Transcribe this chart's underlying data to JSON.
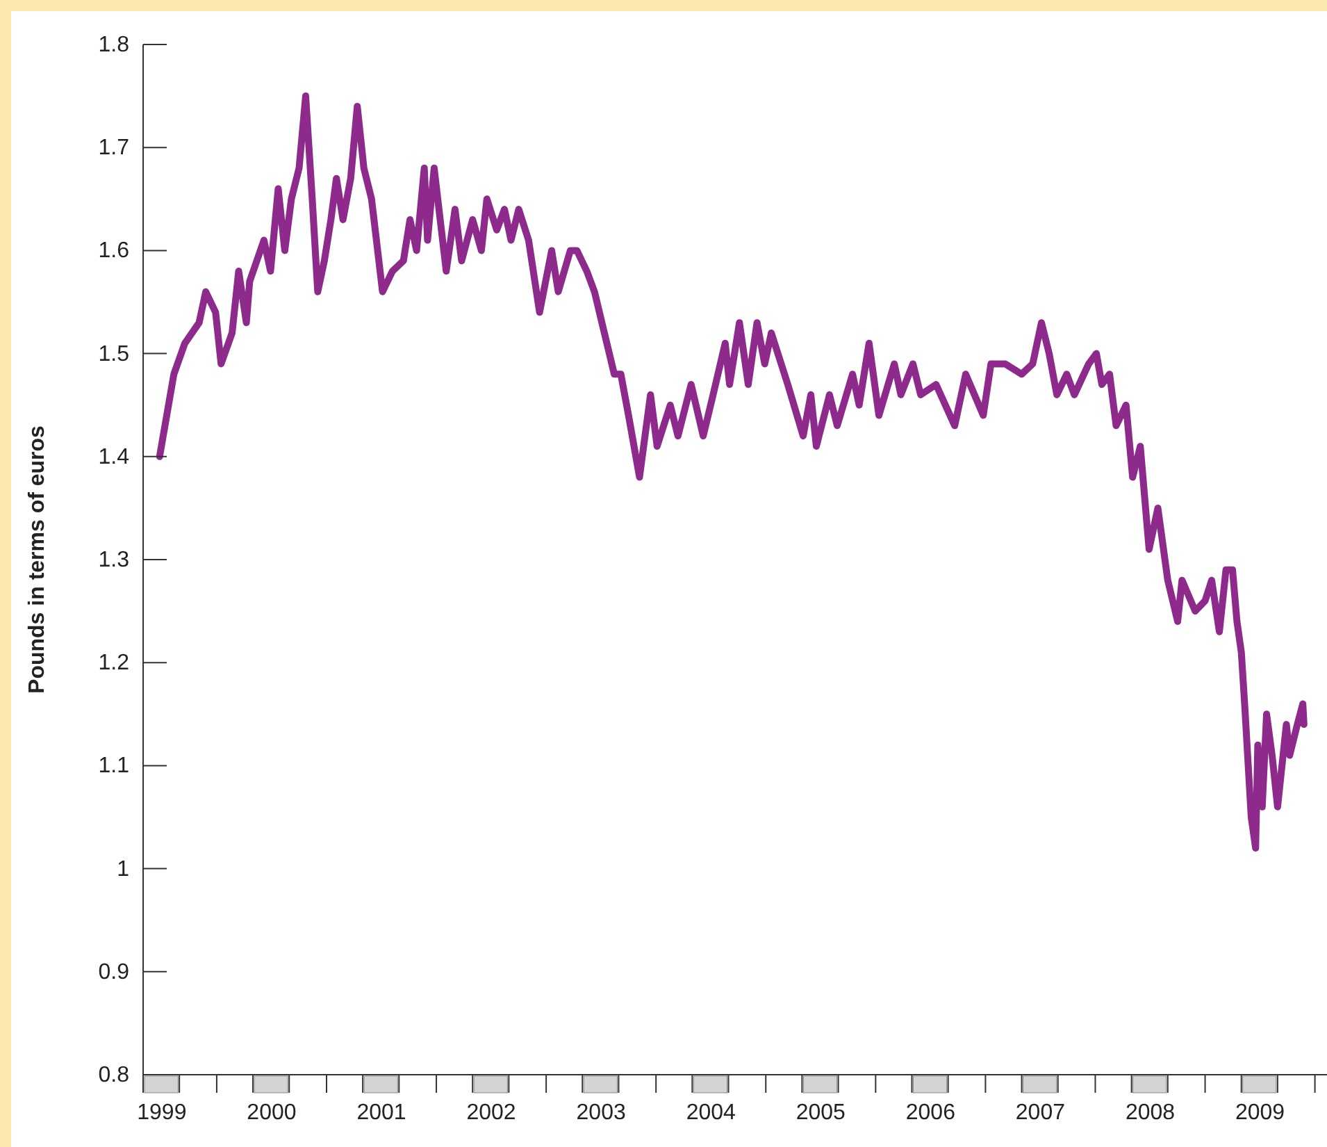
{
  "chart_data": {
    "type": "line",
    "ylabel": "Pounds in terms of euros",
    "color": "#8e2a8c",
    "x": [
      1999.15,
      1999.28,
      1999.38,
      1999.51,
      1999.57,
      1999.66,
      1999.71,
      1999.81,
      1999.87,
      1999.94,
      1999.97,
      2000.1,
      2000.16,
      2000.23,
      2000.29,
      2000.35,
      2000.42,
      2000.48,
      2000.54,
      2000.59,
      2000.65,
      2000.71,
      2000.76,
      2000.82,
      2000.89,
      2000.95,
      2001.01,
      2001.08,
      2001.18,
      2001.27,
      2001.37,
      2001.43,
      2001.49,
      2001.56,
      2001.59,
      2001.65,
      2001.76,
      2001.84,
      2001.9,
      2002.0,
      2002.08,
      2002.13,
      2002.22,
      2002.29,
      2002.35,
      2002.42,
      2002.51,
      2002.61,
      2002.72,
      2002.78,
      2002.89,
      2002.95,
      2003.04,
      2003.11,
      2003.2,
      2003.29,
      2003.35,
      2003.42,
      2003.52,
      2003.62,
      2003.68,
      2003.8,
      2003.87,
      2003.99,
      2004.1,
      2004.19,
      2004.3,
      2004.34,
      2004.43,
      2004.51,
      2004.59,
      2004.66,
      2004.72,
      2004.87,
      2005.01,
      2005.08,
      2005.13,
      2005.25,
      2005.32,
      2005.46,
      2005.52,
      2005.61,
      2005.7,
      2005.84,
      2005.9,
      2006.01,
      2006.08,
      2006.22,
      2006.39,
      2006.49,
      2006.65,
      2006.72,
      2006.85,
      2007.0,
      2007.1,
      2007.18,
      2007.25,
      2007.32,
      2007.41,
      2007.48,
      2007.61,
      2007.68,
      2007.73,
      2007.8,
      2007.86,
      2007.95,
      2008.01,
      2008.08,
      2008.16,
      2008.24,
      2008.33,
      2008.42,
      2008.46,
      2008.58,
      2008.67,
      2008.73,
      2008.8,
      2008.86,
      2008.92,
      2008.96,
      2009.0,
      2009.03,
      2009.09,
      2009.13,
      2009.15,
      2009.19,
      2009.23,
      2009.28,
      2009.33,
      2009.41,
      2009.44,
      2009.51,
      2009.56,
      2009.57
    ],
    "values": [
      1.4,
      1.48,
      1.51,
      1.53,
      1.56,
      1.54,
      1.49,
      1.52,
      1.58,
      1.53,
      1.57,
      1.61,
      1.58,
      1.66,
      1.6,
      1.65,
      1.68,
      1.75,
      1.65,
      1.56,
      1.59,
      1.63,
      1.67,
      1.63,
      1.67,
      1.74,
      1.68,
      1.65,
      1.56,
      1.58,
      1.59,
      1.63,
      1.6,
      1.68,
      1.61,
      1.68,
      1.58,
      1.64,
      1.59,
      1.63,
      1.6,
      1.65,
      1.62,
      1.64,
      1.61,
      1.64,
      1.61,
      1.54,
      1.6,
      1.56,
      1.6,
      1.6,
      1.58,
      1.56,
      1.52,
      1.48,
      1.48,
      1.44,
      1.38,
      1.46,
      1.41,
      1.45,
      1.42,
      1.47,
      1.42,
      1.46,
      1.51,
      1.47,
      1.53,
      1.47,
      1.53,
      1.49,
      1.52,
      1.47,
      1.42,
      1.46,
      1.41,
      1.46,
      1.43,
      1.48,
      1.45,
      1.51,
      1.44,
      1.49,
      1.46,
      1.49,
      1.46,
      1.47,
      1.43,
      1.48,
      1.44,
      1.49,
      1.49,
      1.48,
      1.49,
      1.53,
      1.5,
      1.46,
      1.48,
      1.46,
      1.49,
      1.5,
      1.47,
      1.48,
      1.43,
      1.45,
      1.38,
      1.41,
      1.31,
      1.35,
      1.28,
      1.24,
      1.28,
      1.25,
      1.26,
      1.28,
      1.23,
      1.29,
      1.29,
      1.24,
      1.21,
      1.16,
      1.05,
      1.02,
      1.12,
      1.06,
      1.15,
      1.11,
      1.06,
      1.14,
      1.11,
      1.14,
      1.16,
      1.14
    ],
    "xlim": [
      1999,
      2009.78
    ],
    "xticks": [
      {
        "value": 1999,
        "label": null
      },
      {
        "value": 1999.17,
        "label": "1999"
      },
      {
        "value": 1999.33,
        "label": null
      },
      {
        "value": 1999.67,
        "label": null
      },
      {
        "value": 2000,
        "label": null
      },
      {
        "value": 2000.17,
        "label": "2000"
      },
      {
        "value": 2000.33,
        "label": null
      },
      {
        "value": 2000.67,
        "label": null
      },
      {
        "value": 2001,
        "label": null
      },
      {
        "value": 2001.17,
        "label": "2001"
      },
      {
        "value": 2001.33,
        "label": null
      },
      {
        "value": 2001.67,
        "label": null
      },
      {
        "value": 2002,
        "label": null
      },
      {
        "value": 2002.17,
        "label": "2002"
      },
      {
        "value": 2002.33,
        "label": null
      },
      {
        "value": 2002.67,
        "label": null
      },
      {
        "value": 2003,
        "label": null
      },
      {
        "value": 2003.17,
        "label": "2003"
      },
      {
        "value": 2003.33,
        "label": null
      },
      {
        "value": 2003.67,
        "label": null
      },
      {
        "value": 2004,
        "label": null
      },
      {
        "value": 2004.17,
        "label": "2004"
      },
      {
        "value": 2004.33,
        "label": null
      },
      {
        "value": 2004.67,
        "label": null
      },
      {
        "value": 2005,
        "label": null
      },
      {
        "value": 2005.17,
        "label": "2005"
      },
      {
        "value": 2005.33,
        "label": null
      },
      {
        "value": 2005.67,
        "label": null
      },
      {
        "value": 2006,
        "label": null
      },
      {
        "value": 2006.17,
        "label": "2006"
      },
      {
        "value": 2006.33,
        "label": null
      },
      {
        "value": 2006.67,
        "label": null
      },
      {
        "value": 2007,
        "label": null
      },
      {
        "value": 2007.17,
        "label": "2007"
      },
      {
        "value": 2007.33,
        "label": null
      },
      {
        "value": 2007.67,
        "label": null
      },
      {
        "value": 2008,
        "label": null
      },
      {
        "value": 2008.17,
        "label": "2008"
      },
      {
        "value": 2008.33,
        "label": null
      },
      {
        "value": 2008.67,
        "label": null
      },
      {
        "value": 2009,
        "label": null
      },
      {
        "value": 2009.17,
        "label": "2009"
      },
      {
        "value": 2009.33,
        "label": null
      },
      {
        "value": 2009.67,
        "label": null
      }
    ],
    "ylim": [
      0.8,
      1.8
    ],
    "yticks": [
      0.8,
      0.9,
      1,
      1.1,
      1.2,
      1.3,
      1.4,
      1.5,
      1.6,
      1.7,
      1.8
    ]
  }
}
